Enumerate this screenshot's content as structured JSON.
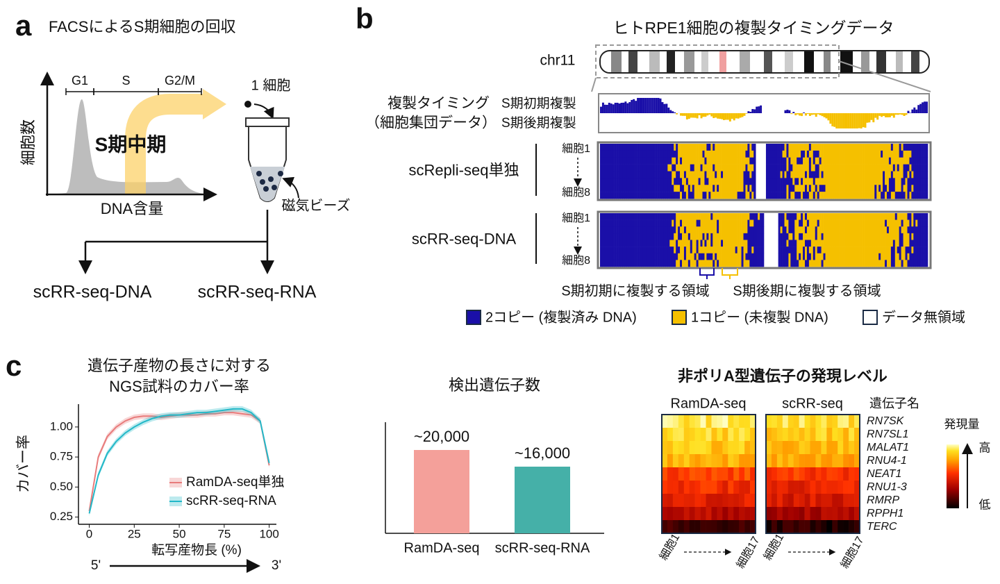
{
  "panel_a": {
    "letter": "a",
    "title": "FACSによるS期細胞の回収",
    "phases": [
      "G1",
      "S",
      "G2/M"
    ],
    "y_label": "細胞数",
    "x_label": "DNA含量",
    "highlight": "S期中期",
    "single_cell": "1 細胞",
    "beads": "磁気ビーズ",
    "outputs": [
      "scRR-seq-DNA",
      "scRR-seq-RNA"
    ]
  },
  "panel_b": {
    "letter": "b",
    "title": "ヒトRPE1細胞の複製タイミングデータ",
    "chromosome": "chr11",
    "bulk_label": [
      "複製タイミング",
      "（細胞集団データ）"
    ],
    "bulk_series": [
      "S期初期複製",
      "S期後期複製"
    ],
    "tracks": [
      {
        "name": "scRepli-seq単独",
        "first_cell": "細胞1",
        "last_cell": "細胞8"
      },
      {
        "name": "scRR-seq-DNA",
        "first_cell": "細胞1",
        "last_cell": "細胞8"
      }
    ],
    "regions": [
      "S期初期に複製する領域",
      "S期後期に複製する領域"
    ],
    "legend": [
      "2コピー (複製済み DNA)",
      "1コピー (未複製 DNA)",
      "データ無領域"
    ]
  },
  "panel_c": {
    "letter": "c",
    "direction": [
      "5'",
      "3'"
    ],
    "heatmap": {
      "title": "非ポリA型遺伝子の発現レベル",
      "groups": [
        "RamDA-seq",
        "scRR-seq"
      ],
      "gene_header": "遺伝子名",
      "genes": [
        "RN7SK",
        "RN7SL1",
        "MALAT1",
        "RNU4-1",
        "NEAT1",
        "RNU1-3",
        "RMRP",
        "RPPH1",
        "TERC"
      ],
      "colorbar_title": "発現量",
      "high": "高",
      "low": "低",
      "cell_labels": [
        "細胞1",
        "細胞17"
      ]
    }
  },
  "chart_data": [
    {
      "type": "line",
      "title": [
        "遺伝子産物の長さに対する",
        "NGS試料のカバー率"
      ],
      "x_label": "転写産物長 (%)",
      "y_label": "カバー率",
      "x": [
        0,
        5,
        10,
        15,
        20,
        25,
        30,
        35,
        40,
        45,
        50,
        55,
        60,
        65,
        70,
        75,
        80,
        85,
        90,
        95,
        100
      ],
      "series": [
        {
          "name": "RamDA-seq単独",
          "color": "#e87b7b",
          "values": [
            0.3,
            0.75,
            0.92,
            1.0,
            1.05,
            1.08,
            1.09,
            1.09,
            1.08,
            1.09,
            1.1,
            1.1,
            1.1,
            1.11,
            1.11,
            1.12,
            1.12,
            1.11,
            1.1,
            1.05,
            0.68
          ]
        },
        {
          "name": "scRR-seq-RNA",
          "color": "#22b8c8",
          "values": [
            0.28,
            0.6,
            0.78,
            0.88,
            0.95,
            1.0,
            1.04,
            1.07,
            1.09,
            1.1,
            1.1,
            1.11,
            1.12,
            1.12,
            1.13,
            1.14,
            1.15,
            1.15,
            1.12,
            1.05,
            0.7
          ]
        }
      ],
      "xlim": [
        -6,
        104
      ],
      "ylim": [
        0.19,
        1.19
      ],
      "xticks": [
        0,
        25,
        50,
        75,
        100
      ],
      "yticks": [
        0.25,
        {
          "value": 0.5,
          "label": "0.50"
        },
        0.75,
        {
          "value": 1,
          "label": "1.00"
        }
      ],
      "legend": "lower right"
    },
    {
      "type": "bar",
      "title": "検出遺伝子数",
      "categories": [
        "RamDA-seq",
        "scRR-seq-RNA"
      ],
      "values": [
        20000,
        16000
      ],
      "value_labels": [
        "~20,000",
        "~16,000"
      ],
      "colors": [
        "#f4a09a",
        "#45b0a8"
      ],
      "value_label_colors": [
        "#e8736b",
        "#1fb5b8"
      ],
      "ylim": [
        0,
        26667
      ]
    }
  ]
}
